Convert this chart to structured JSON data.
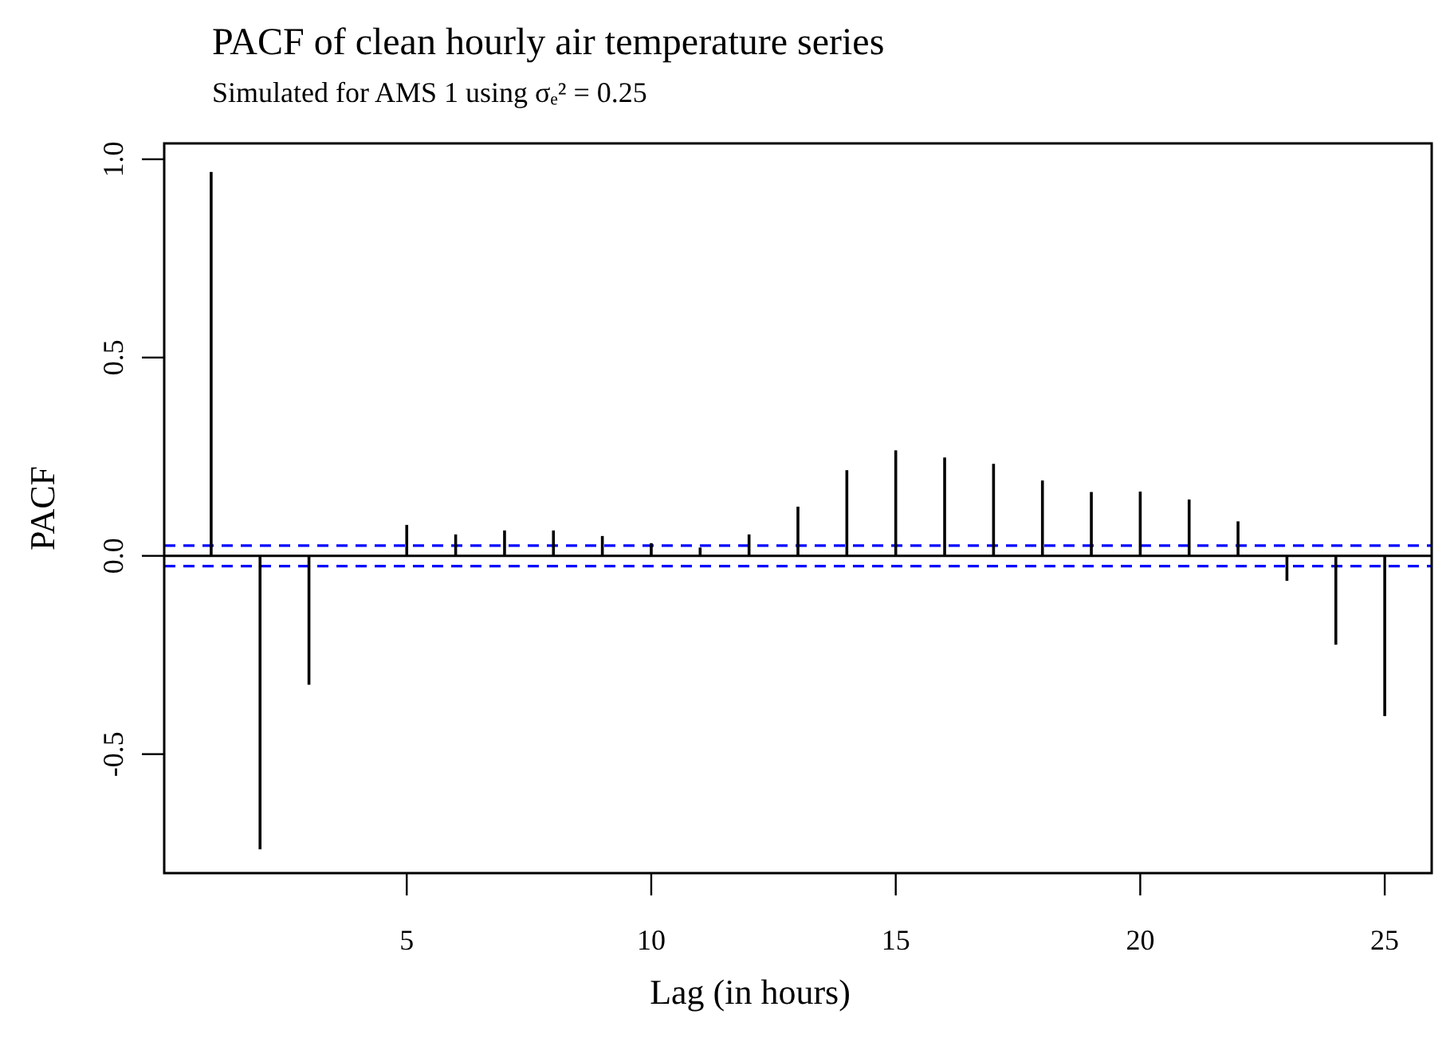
{
  "chart_data": {
    "type": "bar",
    "title": "PACF of clean hourly air temperature series",
    "subtitle": "Simulated for AMS 1 using σₑ² = 0.25",
    "xlabel": "Lag (in hours)",
    "ylabel": "PACF",
    "x": [
      1,
      2,
      3,
      5,
      6,
      7,
      8,
      9,
      10,
      11,
      12,
      13,
      14,
      15,
      16,
      17,
      18,
      19,
      20,
      21,
      22,
      23,
      24,
      25
    ],
    "values": [
      0.968,
      -0.74,
      -0.325,
      0.078,
      0.054,
      0.064,
      0.064,
      0.05,
      0.032,
      0.021,
      0.054,
      0.124,
      0.216,
      0.266,
      0.248,
      0.232,
      0.19,
      0.161,
      0.162,
      0.142,
      0.087,
      -0.063,
      -0.224,
      -0.404
    ],
    "color": "#000000",
    "xlim": [
      0.04,
      25.96
    ],
    "xticks": [
      5,
      10,
      15,
      20,
      25
    ],
    "ylim": [
      -0.8,
      1.04
    ],
    "yticks": [
      {
        "value": -0.5,
        "label": "-0.5"
      },
      {
        "value": 0,
        "label": "0.0"
      },
      {
        "value": 0.5,
        "label": "0.5"
      },
      {
        "value": 1,
        "label": "1.0"
      }
    ],
    "ref_lines": [
      {
        "axis": "y",
        "value": 0,
        "color": "#000000",
        "line_style": "solid"
      },
      {
        "axis": "y",
        "value": 0.026,
        "color": "#0000ff",
        "line_style": "dashed"
      },
      {
        "axis": "y",
        "value": -0.026,
        "color": "#0000ff",
        "line_style": "dashed"
      }
    ],
    "grid": false
  }
}
